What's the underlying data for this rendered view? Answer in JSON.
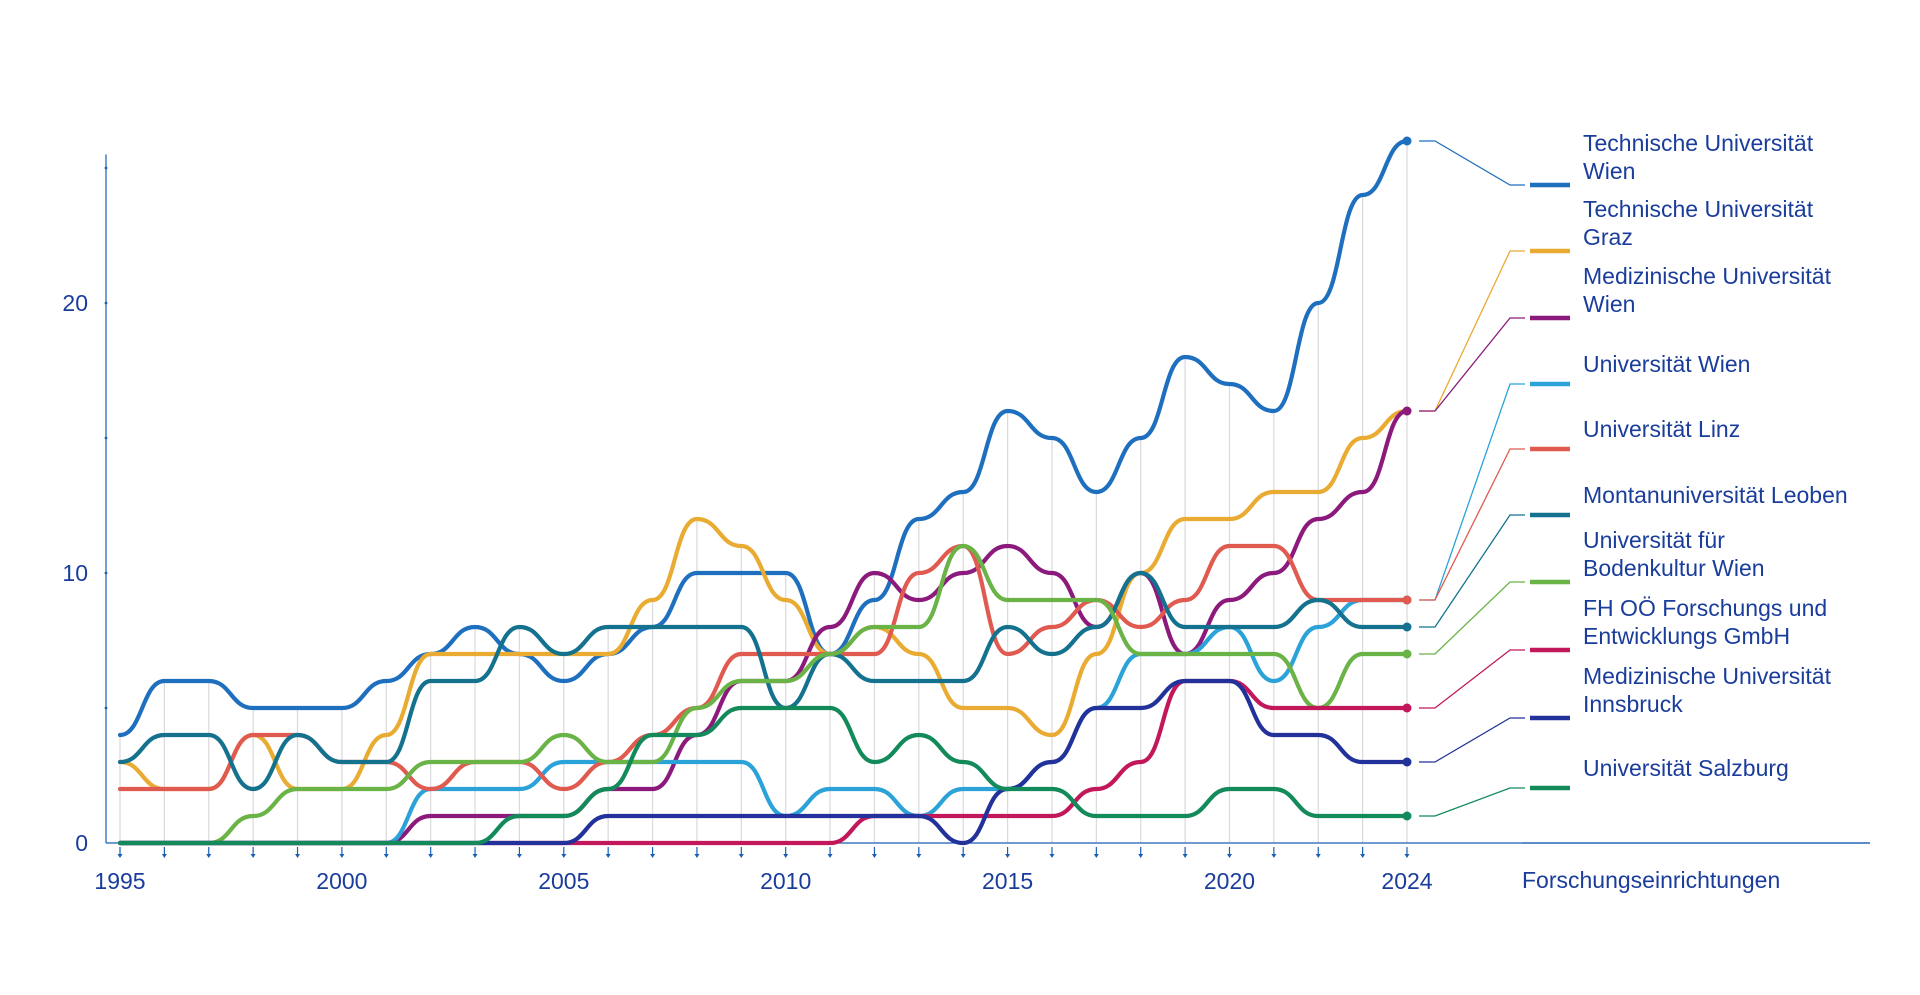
{
  "chart_data": {
    "type": "line",
    "x": [
      1995,
      1996,
      1997,
      1998,
      1999,
      2000,
      2001,
      2002,
      2003,
      2004,
      2005,
      2006,
      2007,
      2008,
      2009,
      2010,
      2011,
      2012,
      2013,
      2014,
      2015,
      2016,
      2017,
      2018,
      2019,
      2020,
      2021,
      2022,
      2023,
      2024
    ],
    "x_tick_labels": [
      "1995",
      "2000",
      "2005",
      "2010",
      "2015",
      "2020",
      "2024"
    ],
    "y_tick_labels": [
      "0",
      "10",
      "20"
    ],
    "ylim": [
      0,
      26
    ],
    "xlim": [
      1995,
      2024
    ],
    "legend_title": "Forschungseinrichtungen",
    "legend_position": "right",
    "grid": "vertical gridlines at each year",
    "series": [
      {
        "name": "Technische Universität Wien",
        "name_lines": [
          "Technische Universität",
          "Wien"
        ],
        "color": "#1f6fbf",
        "values": [
          4,
          6,
          6,
          5,
          5,
          5,
          6,
          7,
          8,
          7,
          6,
          7,
          8,
          10,
          10,
          10,
          7,
          9,
          12,
          13,
          16,
          15,
          13,
          15,
          18,
          17,
          16,
          20,
          24,
          26
        ]
      },
      {
        "name": "Technische Universität Graz",
        "name_lines": [
          "Technische Universität",
          "Graz"
        ],
        "color": "#e9ab32",
        "values": [
          3,
          2,
          2,
          4,
          2,
          2,
          4,
          7,
          7,
          7,
          7,
          7,
          9,
          12,
          11,
          9,
          7,
          8,
          7,
          5,
          5,
          4,
          7,
          10,
          12,
          12,
          13,
          13,
          15,
          16
        ]
      },
      {
        "name": "Medizinische Universität Wien",
        "name_lines": [
          "Medizinische Universität",
          "Wien"
        ],
        "color": "#8b1a7c",
        "values": [
          0,
          0,
          0,
          0,
          0,
          0,
          0,
          1,
          1,
          1,
          1,
          2,
          2,
          4,
          6,
          6,
          8,
          10,
          9,
          10,
          11,
          10,
          8,
          10,
          7,
          9,
          10,
          12,
          13,
          16
        ]
      },
      {
        "name": "Universität Wien",
        "name_lines": [
          "Universität Wien"
        ],
        "color": "#2ba3d9",
        "values": [
          0,
          0,
          0,
          0,
          0,
          0,
          0,
          2,
          2,
          2,
          3,
          3,
          3,
          3,
          3,
          1,
          2,
          2,
          1,
          2,
          2,
          3,
          5,
          7,
          7,
          8,
          6,
          8,
          9,
          9
        ]
      },
      {
        "name": "Universität Linz",
        "name_lines": [
          "Universität Linz"
        ],
        "color": "#e05a50",
        "values": [
          2,
          2,
          2,
          4,
          4,
          3,
          3,
          2,
          3,
          3,
          2,
          3,
          4,
          5,
          7,
          7,
          7,
          7,
          10,
          11,
          7,
          8,
          9,
          8,
          9,
          11,
          11,
          9,
          9,
          9
        ]
      },
      {
        "name": "Montanuniversität Leoben",
        "name_lines": [
          "Montanuniversität Leoben"
        ],
        "color": "#14728f",
        "values": [
          3,
          4,
          4,
          2,
          4,
          3,
          3,
          6,
          6,
          8,
          7,
          8,
          8,
          8,
          8,
          5,
          7,
          6,
          6,
          6,
          8,
          7,
          8,
          10,
          8,
          8,
          8,
          9,
          8,
          8
        ]
      },
      {
        "name": "Universität für Bodenkultur Wien",
        "name_lines": [
          "Universität für",
          "Bodenkultur Wien"
        ],
        "color": "#6ab347",
        "values": [
          0,
          0,
          0,
          1,
          2,
          2,
          2,
          3,
          3,
          3,
          4,
          3,
          3,
          5,
          6,
          6,
          7,
          8,
          8,
          11,
          9,
          9,
          9,
          7,
          7,
          7,
          7,
          5,
          7,
          7
        ]
      },
      {
        "name": "FH OÖ Forschungs und Entwicklungs GmbH",
        "name_lines": [
          "FH OÖ Forschungs und",
          "Entwicklungs GmbH"
        ],
        "color": "#c2185b",
        "values": [
          0,
          0,
          0,
          0,
          0,
          0,
          0,
          0,
          0,
          0,
          0,
          0,
          0,
          0,
          0,
          0,
          0,
          1,
          1,
          1,
          1,
          1,
          2,
          3,
          6,
          6,
          5,
          5,
          5,
          5
        ]
      },
      {
        "name": "Medizinische Universität Innsbruck",
        "name_lines": [
          "Medizinische Universität",
          "Innsbruck"
        ],
        "color": "#22329a",
        "values": [
          0,
          0,
          0,
          0,
          0,
          0,
          0,
          0,
          0,
          0,
          0,
          1,
          1,
          1,
          1,
          1,
          1,
          1,
          1,
          0,
          2,
          3,
          5,
          5,
          6,
          6,
          4,
          4,
          3,
          3
        ]
      },
      {
        "name": "Universität Salzburg",
        "name_lines": [
          "Universität Salzburg"
        ],
        "color": "#138a5a",
        "values": [
          0,
          0,
          0,
          0,
          0,
          0,
          0,
          0,
          0,
          1,
          1,
          2,
          4,
          4,
          5,
          5,
          5,
          3,
          4,
          3,
          2,
          2,
          1,
          1,
          1,
          2,
          2,
          1,
          1,
          1
        ]
      }
    ]
  }
}
